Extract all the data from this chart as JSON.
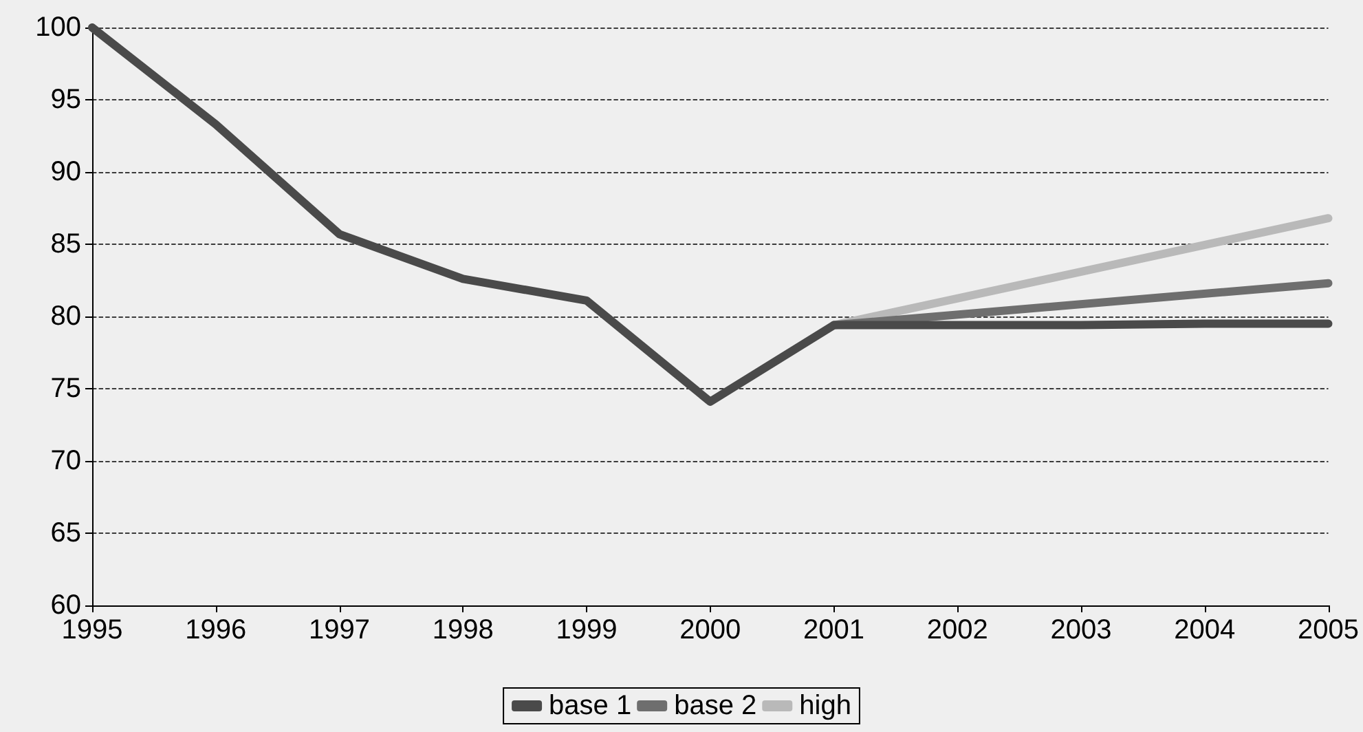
{
  "chart_data": {
    "type": "line",
    "xlim": [
      1995,
      2005
    ],
    "xticks": [
      1995,
      1996,
      1997,
      1998,
      1999,
      2000,
      2001,
      2002,
      2003,
      2004,
      2005
    ],
    "ylim": [
      60,
      100
    ],
    "yticks": [
      60,
      65,
      70,
      75,
      80,
      85,
      90,
      95,
      100
    ],
    "grid": "y",
    "legend": "bottom",
    "marker": "none",
    "line_style": "solid",
    "series": [
      {
        "name": "base 1",
        "color": "#4a4a4a",
        "x": [
          1995,
          1996,
          1997,
          1998,
          1999,
          2000,
          2001,
          2002,
          2003,
          2004,
          2005
        ],
        "values": [
          100,
          93.3,
          85.7,
          82.6,
          81.1,
          74.1,
          79.4,
          79.4,
          79.4,
          79.5,
          79.5
        ]
      },
      {
        "name": "base 2",
        "color": "#6e6e6e",
        "x": [
          2001,
          2005
        ],
        "values": [
          79.4,
          82.3
        ]
      },
      {
        "name": "high",
        "color": "#b9b9b9",
        "x": [
          2001,
          2005
        ],
        "values": [
          79.4,
          86.8
        ]
      }
    ]
  }
}
